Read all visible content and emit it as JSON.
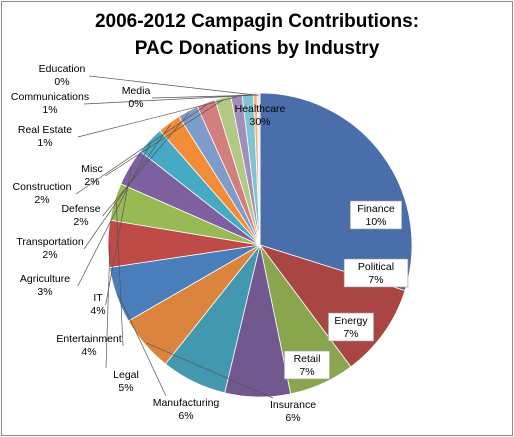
{
  "chart_data": {
    "type": "pie",
    "title_line1": "2006-2012 Campagin Contributions:",
    "title_line2": "PAC Donations by Industry",
    "slices": [
      {
        "name": "Healthcare",
        "pct_label": "30%",
        "value": 30.0,
        "color": "#4a6ea9"
      },
      {
        "name": "Finance",
        "pct_label": "10%",
        "value": 10.0,
        "color": "#a94542"
      },
      {
        "name": "Political",
        "pct_label": "7%",
        "value": 7.0,
        "color": "#89a54e"
      },
      {
        "name": "Energy",
        "pct_label": "7%",
        "value": 7.0,
        "color": "#71588f"
      },
      {
        "name": "Retail",
        "pct_label": "7%",
        "value": 7.0,
        "color": "#4198af"
      },
      {
        "name": "Insurance",
        "pct_label": "6%",
        "value": 6.0,
        "color": "#db843d"
      },
      {
        "name": "Manufacturing",
        "pct_label": "6%",
        "value": 6.0,
        "color": "#4a7ebb"
      },
      {
        "name": "Legal",
        "pct_label": "5%",
        "value": 5.0,
        "color": "#be4b48"
      },
      {
        "name": "Entertainment",
        "pct_label": "4%",
        "value": 4.0,
        "color": "#98b954"
      },
      {
        "name": "IT",
        "pct_label": "4%",
        "value": 4.0,
        "color": "#7d60a0"
      },
      {
        "name": "Agriculture",
        "pct_label": "3%",
        "value": 3.0,
        "color": "#46aac4"
      },
      {
        "name": "Transportation",
        "pct_label": "2%",
        "value": 2.5,
        "color": "#f38c36"
      },
      {
        "name": "Defense",
        "pct_label": "2%",
        "value": 2.2,
        "color": "#7e9cc9"
      },
      {
        "name": "Construction",
        "pct_label": "2%",
        "value": 2.0,
        "color": "#d27f7d"
      },
      {
        "name": "Misc",
        "pct_label": "2%",
        "value": 1.7,
        "color": "#b2c986"
      },
      {
        "name": "Real Estate",
        "pct_label": "1%",
        "value": 1.2,
        "color": "#a08fb8"
      },
      {
        "name": "Communications",
        "pct_label": "1%",
        "value": 1.2,
        "color": "#7fc4d6"
      },
      {
        "name": "Education",
        "pct_label": "0%",
        "value": 0.4,
        "color": "#f4b27b"
      },
      {
        "name": "Media",
        "pct_label": "0%",
        "value": 0.3,
        "color": "#e6e6e6"
      }
    ]
  }
}
